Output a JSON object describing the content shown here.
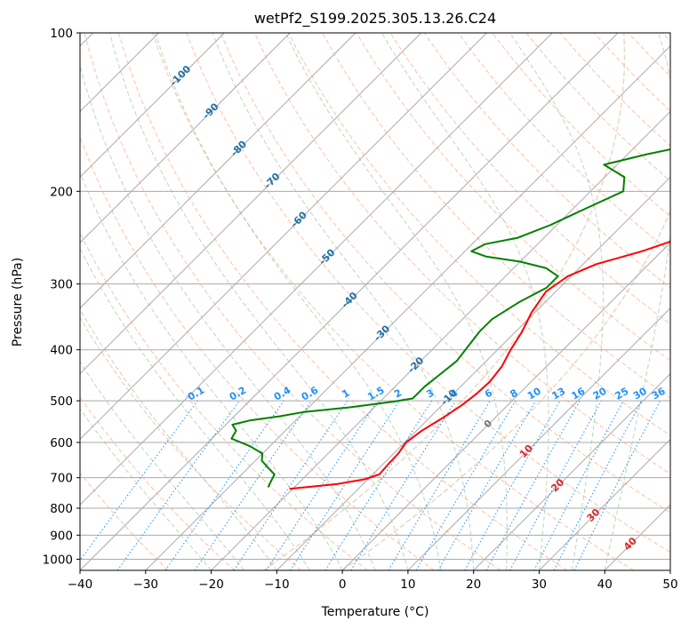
{
  "chart_data": {
    "type": "line",
    "subtype": "skew-t log-p diagram",
    "title": "wetPf2_S199.2025.305.13.26.C24",
    "xlabel": "Temperature (°C)",
    "ylabel": "Pressure (hPa)",
    "xlim": [
      -40,
      50
    ],
    "ylim": [
      1050,
      100
    ],
    "y_scale": "log",
    "x_ticks": [
      "−40",
      "−30",
      "−20",
      "−10",
      "0",
      "10",
      "20",
      "30",
      "40",
      "50"
    ],
    "y_ticks": [
      "100",
      "200",
      "300",
      "400",
      "500",
      "600",
      "700",
      "800",
      "900",
      "1000"
    ],
    "grid": true,
    "colors": {
      "temperature": "#ff0000",
      "dewpoint": "#008000",
      "isotherm": "#aaaaaa",
      "dry_adiabat": "#ffa07a",
      "moist_adiabat": "#8fbc8f",
      "mixing_ratio": "#1e90ff",
      "isotherm_label": "#1f6fa8",
      "dry_adiabat_label": "#d62728",
      "special_isotherm": "#d2b48c"
    },
    "series": [
      {
        "role": "temperature",
        "points": [
          [
            -20.5,
            735
          ],
          [
            -14,
            720
          ],
          [
            -10.5,
            705
          ],
          [
            -9,
            690
          ],
          [
            -9.2,
            660
          ],
          [
            -9.3,
            630
          ],
          [
            -9.8,
            600
          ],
          [
            -9.2,
            570
          ],
          [
            -8,
            540
          ],
          [
            -7,
            510
          ],
          [
            -6.5,
            485
          ],
          [
            -6.3,
            460
          ],
          [
            -6.8,
            430
          ],
          [
            -8,
            400
          ],
          [
            -9,
            370
          ],
          [
            -10.5,
            340
          ],
          [
            -11.5,
            310
          ],
          [
            -10.5,
            290
          ],
          [
            -8,
            275
          ],
          [
            -3,
            260
          ],
          [
            1,
            245
          ],
          [
            5,
            235
          ],
          [
            10,
            220
          ],
          [
            14,
            205
          ],
          [
            18,
            190
          ],
          [
            21,
            175
          ],
          [
            24.5,
            160
          ],
          [
            28,
            145
          ],
          [
            30.5,
            130
          ],
          [
            32,
            118
          ],
          [
            34,
            106
          ],
          [
            36.5,
            100
          ]
        ]
      },
      {
        "role": "dewpoint",
        "points": [
          [
            -24,
            730
          ],
          [
            -24.5,
            710
          ],
          [
            -25,
            690
          ],
          [
            -27,
            670
          ],
          [
            -29,
            650
          ],
          [
            -30,
            630
          ],
          [
            -33,
            610
          ],
          [
            -37,
            590
          ],
          [
            -37.5,
            570
          ],
          [
            -39,
            555
          ],
          [
            -37,
            545
          ],
          [
            -33,
            535
          ],
          [
            -30,
            525
          ],
          [
            -24,
            515
          ],
          [
            -18,
            502
          ],
          [
            -15.5,
            495
          ],
          [
            -15.5,
            470
          ],
          [
            -15,
            445
          ],
          [
            -14.5,
            420
          ],
          [
            -15,
            395
          ],
          [
            -15.5,
            370
          ],
          [
            -15.5,
            350
          ],
          [
            -14,
            325
          ],
          [
            -12,
            305
          ],
          [
            -12,
            290
          ],
          [
            -15,
            280
          ],
          [
            -20,
            272
          ],
          [
            -26,
            266
          ],
          [
            -29,
            260
          ],
          [
            -28,
            252
          ],
          [
            -24,
            245
          ],
          [
            -21,
            232
          ],
          [
            -18,
            215
          ],
          [
            -15,
            200
          ],
          [
            -17,
            188
          ],
          [
            -22,
            178
          ],
          [
            -17,
            170
          ],
          [
            -13,
            165
          ],
          [
            -9,
            160
          ],
          [
            -6,
            155
          ],
          [
            -4.5,
            145
          ],
          [
            -4,
            135
          ],
          [
            -4.3,
            125
          ],
          [
            -2.8,
            115
          ],
          [
            -1.5,
            106
          ],
          [
            -0.3,
            100
          ]
        ]
      }
    ],
    "isotherm_labels": [
      "-100",
      "-90",
      "-80",
      "-70",
      "-60",
      "-50",
      "-40",
      "-30",
      "-20",
      "-10",
      "0"
    ],
    "dry_adiabat_labels": [
      "10",
      "20",
      "30",
      "40"
    ],
    "mixing_ratio_labels": [
      "0.1",
      "0.2",
      "0.4",
      "0.6",
      "1",
      "1.5",
      "2",
      "3",
      "4",
      "6",
      "8",
      "10",
      "13",
      "16",
      "20",
      "25",
      "30",
      "36"
    ]
  }
}
